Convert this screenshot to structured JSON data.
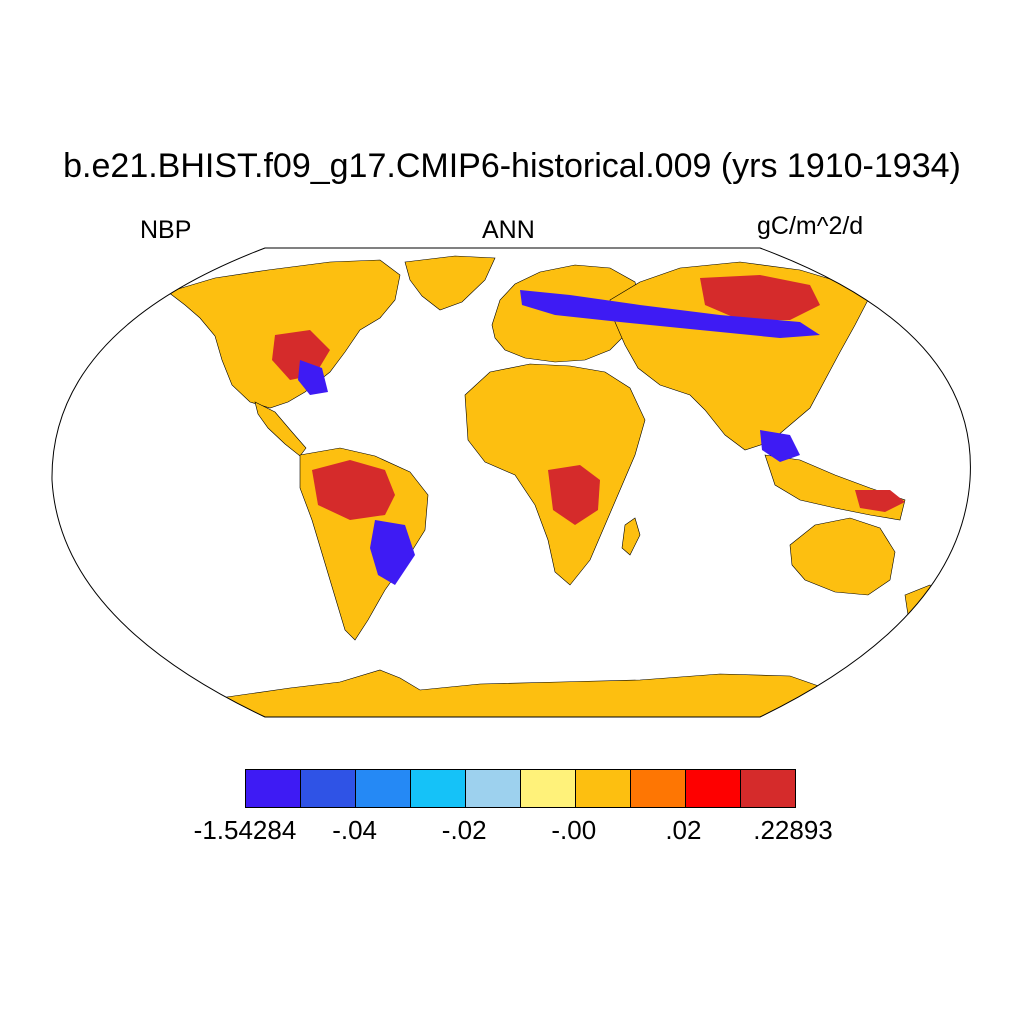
{
  "title": "b.e21.BHIST.f09_g17.CMIP6-historical.009 (yrs 1910-1934)",
  "labels": {
    "variable": "NBP",
    "season": "ANN",
    "units": "gC/m^2/d"
  },
  "colors": {
    "land_base": "#fdbf10",
    "land_light": "#fff27a",
    "positive": "#d52b2b",
    "negative": "#3e1bf4",
    "negative_mid": "#2f53e6"
  },
  "colorbar": {
    "colors": [
      "#3e1bf4",
      "#2f53e6",
      "#2589f5",
      "#15c2f8",
      "#9dd1ee",
      "#fff27a",
      "#fdbf10",
      "#fe7603",
      "#fe0000",
      "#d52b2b"
    ],
    "tick_labels": [
      "-1.54284",
      "-.04",
      "-.02",
      "-.00",
      ".02",
      ".22893"
    ]
  }
}
